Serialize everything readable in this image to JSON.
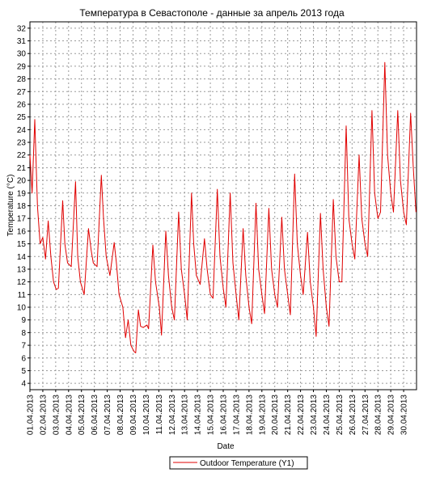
{
  "chart_data": {
    "type": "line",
    "title": "Температура в Севастополе - данные за апрель 2013 года",
    "xlabel": "Date",
    "ylabel": "Temperature (°C)",
    "ylim": [
      3.5,
      32.5
    ],
    "xlim": [
      "01.04.2013",
      "01.05.2013"
    ],
    "grid": true,
    "legend_position": "bottom-center",
    "y_ticks": [
      4,
      5,
      6,
      7,
      8,
      9,
      10,
      11,
      12,
      13,
      14,
      15,
      16,
      17,
      18,
      19,
      20,
      21,
      22,
      23,
      24,
      25,
      26,
      27,
      28,
      29,
      30,
      31,
      32
    ],
    "x_ticks": [
      "01.04.2013",
      "02.04.2013",
      "03.04.2013",
      "04.04.2013",
      "05.04.2013",
      "06.04.2013",
      "07.04.2013",
      "08.04.2013",
      "09.04.2013",
      "10.04.2013",
      "11.04.2013",
      "12.04.2013",
      "13.04.2013",
      "14.04.2013",
      "15.04.2013",
      "16.04.2013",
      "17.04.2013",
      "18.04.2013",
      "19.04.2013",
      "20.04.2013",
      "21.04.2013",
      "22.04.2013",
      "23.04.2013",
      "24.04.2013",
      "25.04.2013",
      "26.04.2013",
      "27.04.2013",
      "28.04.2013",
      "29.04.2013",
      "30.04.2013"
    ],
    "series": [
      {
        "name": "Outdoor Temperature (Y1)",
        "color": "#e00000",
        "x": [
          "01.04.2013 00:00",
          "01.04.2013 04:00",
          "01.04.2013 09:00",
          "01.04.2013 14:00",
          "01.04.2013 19:00",
          "02.04.2013 00:00",
          "02.04.2013 05:00",
          "02.04.2013 10:00",
          "02.04.2013 15:00",
          "02.04.2013 20:00",
          "03.04.2013 01:00",
          "03.04.2013 05:00",
          "03.04.2013 13:00",
          "03.04.2013 17:00",
          "03.04.2013 22:00",
          "04.04.2013 05:00",
          "04.04.2013 13:00",
          "04.04.2013 17:00",
          "04.04.2013 22:00",
          "05.04.2013 05:00",
          "05.04.2013 13:00",
          "05.04.2013 18:00",
          "05.04.2013 22:00",
          "06.04.2013 05:00",
          "06.04.2013 13:00",
          "06.04.2013 17:00",
          "06.04.2013 22:00",
          "07.04.2013 05:00",
          "07.04.2013 13:00",
          "07.04.2013 17:00",
          "07.04.2013 22:00",
          "08.04.2013 05:00",
          "08.04.2013 10:00",
          "08.04.2013 15:00",
          "08.04.2013 20:00",
          "09.04.2013 02:00",
          "09.04.2013 05:00",
          "09.04.2013 10:00",
          "09.04.2013 14:00",
          "09.04.2013 19:00",
          "10.04.2013 02:00",
          "10.04.2013 05:00",
          "10.04.2013 13:00",
          "10.04.2013 18:00",
          "11.04.2013 01:00",
          "11.04.2013 05:00",
          "11.04.2013 13:00",
          "11.04.2013 18:00",
          "12.04.2013 00:00",
          "12.04.2013 05:00",
          "12.04.2013 13:00",
          "12.04.2013 18:00",
          "13.04.2013 00:00",
          "13.04.2013 05:00",
          "13.04.2013 13:00",
          "13.04.2013 17:00",
          "13.04.2013 22:00",
          "14.04.2013 05:00",
          "14.04.2013 13:00",
          "14.04.2013 18:00",
          "15.04.2013 00:00",
          "15.04.2013 05:00",
          "15.04.2013 13:00",
          "15.04.2013 18:00",
          "16.04.2013 00:00",
          "16.04.2013 05:00",
          "16.04.2013 13:00",
          "16.04.2013 18:00",
          "17.04.2013 00:00",
          "17.04.2013 05:00",
          "17.04.2013 13:00",
          "17.04.2013 18:00",
          "18.04.2013 00:00",
          "18.04.2013 05:00",
          "18.04.2013 13:00",
          "18.04.2013 18:00",
          "19.04.2013 00:00",
          "19.04.2013 05:00",
          "19.04.2013 13:00",
          "19.04.2013 18:00",
          "20.04.2013 00:00",
          "20.04.2013 05:00",
          "20.04.2013 13:00",
          "20.04.2013 18:00",
          "21.04.2013 00:00",
          "21.04.2013 05:00",
          "21.04.2013 13:00",
          "21.04.2013 18:00",
          "22.04.2013 00:00",
          "22.04.2013 05:00",
          "22.04.2013 13:00",
          "22.04.2013 18:00",
          "23.04.2013 00:00",
          "23.04.2013 05:00",
          "23.04.2013 13:00",
          "23.04.2013 18:00",
          "24.04.2013 00:00",
          "24.04.2013 05:00",
          "24.04.2013 13:00",
          "24.04.2013 18:00",
          "25.04.2013 00:00",
          "25.04.2013 05:00",
          "25.04.2013 13:00",
          "25.04.2013 18:00",
          "26.04.2013 00:00",
          "26.04.2013 05:00",
          "26.04.2013 13:00",
          "26.04.2013 18:00",
          "27.04.2013 00:00",
          "27.04.2013 05:00",
          "27.04.2013 13:00",
          "27.04.2013 18:00",
          "28.04.2013 00:00",
          "28.04.2013 05:00",
          "28.04.2013 13:00",
          "28.04.2013 18:00",
          "29.04.2013 00:00",
          "29.04.2013 05:00",
          "29.04.2013 13:00",
          "29.04.2013 18:00",
          "30.04.2013 00:00",
          "30.04.2013 05:00",
          "30.04.2013 13:00",
          "30.04.2013 18:00",
          "30.04.2013 23:00"
        ],
        "values": [
          22.0,
          19.0,
          24.8,
          18.0,
          15.0,
          15.5,
          13.8,
          16.8,
          14.0,
          12.0,
          11.4,
          11.5,
          18.4,
          15.0,
          13.5,
          13.2,
          19.9,
          14.0,
          12.0,
          11.0,
          16.2,
          14.5,
          13.5,
          13.2,
          20.4,
          17.0,
          14.0,
          12.5,
          15.1,
          13.5,
          11.0,
          10.0,
          7.6,
          9.0,
          7.0,
          6.5,
          6.4,
          9.8,
          8.5,
          8.4,
          8.6,
          8.3,
          14.9,
          12.0,
          10.0,
          7.8,
          16.0,
          12.5,
          10.0,
          9.0,
          17.5,
          13.0,
          11.0,
          9.0,
          19.0,
          15.0,
          12.5,
          11.8,
          15.4,
          13.0,
          11.0,
          10.7,
          19.3,
          14.0,
          11.5,
          10.0,
          19.0,
          13.5,
          11.0,
          9.0,
          16.2,
          12.5,
          10.0,
          8.7,
          18.2,
          13.0,
          11.0,
          9.5,
          17.8,
          13.0,
          11.0,
          10.0,
          17.1,
          13.0,
          11.0,
          9.4,
          20.5,
          15.0,
          12.5,
          11.0,
          15.9,
          12.0,
          10.0,
          7.7,
          17.4,
          13.0,
          10.0,
          8.5,
          18.5,
          14.0,
          12.0,
          12.0,
          24.3,
          17.0,
          15.0,
          13.8,
          22.0,
          17.0,
          15.0,
          14.0,
          25.5,
          19.0,
          17.0,
          17.5,
          29.3,
          22.0,
          19.0,
          17.5,
          25.5,
          20.0,
          17.5,
          16.5,
          25.3,
          21.0,
          17.5
        ]
      }
    ]
  }
}
